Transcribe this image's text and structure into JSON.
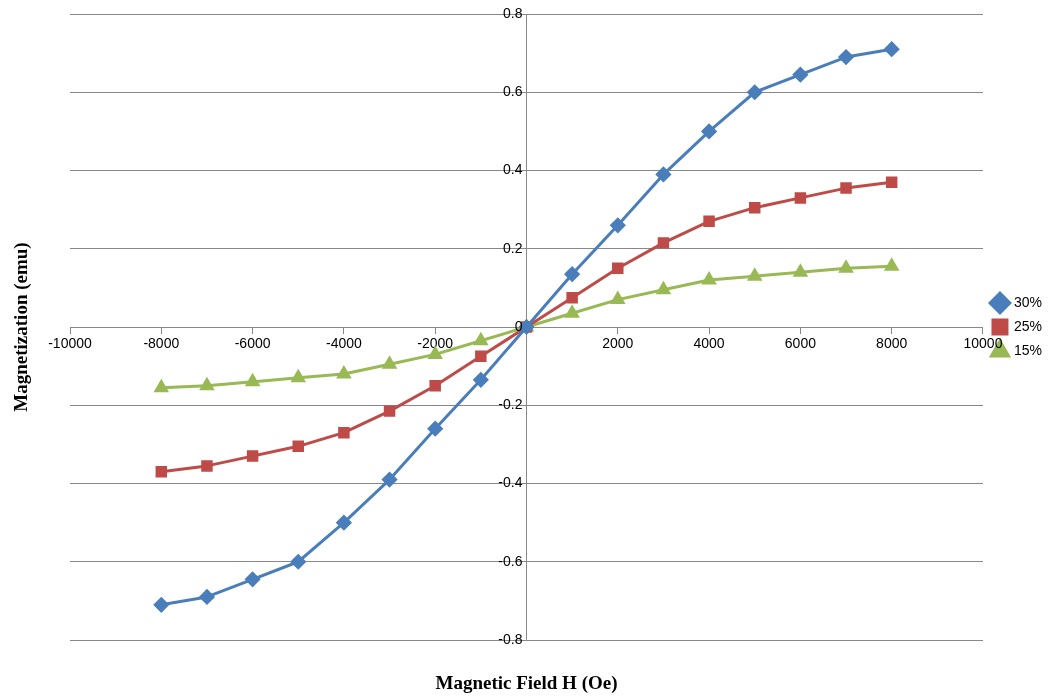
{
  "chart_data": {
    "type": "line",
    "xlabel": "Magnetic Field H (Oe)",
    "ylabel": "Magnetization (emu)",
    "x": [
      -8000,
      -7000,
      -6000,
      -5000,
      -4000,
      -3000,
      -2000,
      -1000,
      0,
      1000,
      2000,
      3000,
      4000,
      5000,
      6000,
      7000,
      8000
    ],
    "xlim": [
      -10000,
      10000
    ],
    "xticks": [
      -10000,
      -8000,
      -6000,
      -4000,
      -2000,
      2000,
      4000,
      6000,
      8000,
      10000
    ],
    "ylim": [
      -0.8,
      0.8
    ],
    "yticks": [
      -0.8,
      -0.6,
      -0.4,
      -0.2,
      0,
      0.2,
      0.4,
      0.6,
      0.8
    ],
    "grid": "y",
    "legend": "right",
    "line_style": "solid",
    "series": [
      {
        "name": "30%",
        "color": "#4a7ebb",
        "marker": "diamond",
        "values": [
          -0.71,
          -0.69,
          -0.645,
          -0.6,
          -0.5,
          -0.39,
          -0.26,
          -0.135,
          0,
          0.135,
          0.26,
          0.39,
          0.5,
          0.6,
          0.645,
          0.69,
          0.71
        ]
      },
      {
        "name": "25%",
        "color": "#be4b48",
        "marker": "square",
        "values": [
          -0.37,
          -0.355,
          -0.33,
          -0.305,
          -0.27,
          -0.215,
          -0.15,
          -0.075,
          0,
          0.075,
          0.15,
          0.215,
          0.27,
          0.305,
          0.33,
          0.355,
          0.37
        ]
      },
      {
        "name": "15%",
        "color": "#98b954",
        "marker": "triangle",
        "values": [
          -0.155,
          -0.15,
          -0.14,
          -0.13,
          -0.12,
          -0.095,
          -0.07,
          -0.035,
          0,
          0.035,
          0.07,
          0.095,
          0.12,
          0.13,
          0.14,
          0.15,
          0.155
        ]
      }
    ]
  }
}
